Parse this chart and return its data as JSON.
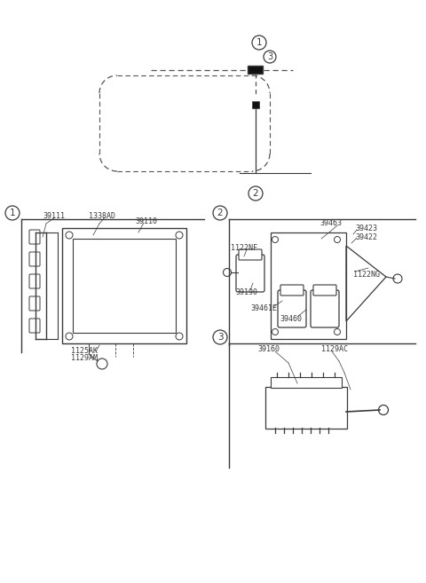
{
  "bg_color": "#ffffff",
  "line_color": "#3a3a3a",
  "text_color": "#3a3a3a",
  "dash_color": "#555555",
  "section1_parts": [
    "39111",
    "1338AD",
    "39110",
    "1125AK",
    "1129AM"
  ],
  "section2_parts": [
    "1122NF",
    "39190",
    "39461E",
    "39460",
    "39463",
    "39422",
    "39423",
    "1122NG"
  ],
  "section3_parts": [
    "39160",
    "1129AC"
  ],
  "top_circles": [
    "1",
    "3",
    "2"
  ],
  "section_circles": [
    "1",
    "2",
    "3"
  ]
}
